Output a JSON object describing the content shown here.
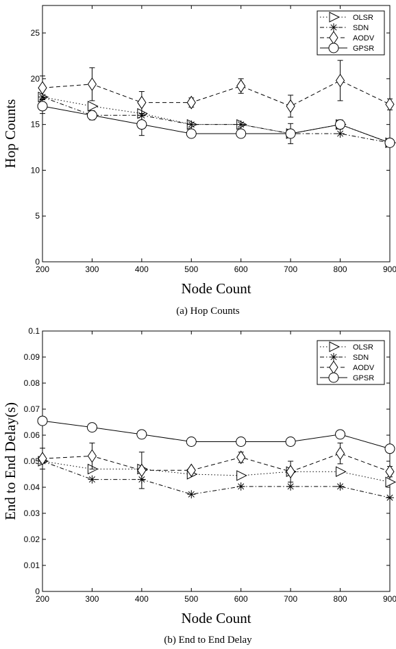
{
  "chart_data": [
    {
      "type": "line",
      "caption": "(a)  Hop Counts",
      "xlabel": "Node Count",
      "ylabel": "Hop Counts",
      "xlim": [
        200,
        900
      ],
      "ylim": [
        0,
        28
      ],
      "xticks": [
        200,
        300,
        400,
        500,
        600,
        700,
        800,
        900
      ],
      "yticks": [
        0,
        5,
        10,
        15,
        20,
        25
      ],
      "legend_position": "top-right",
      "x": [
        200,
        300,
        400,
        500,
        600,
        700,
        800,
        900
      ],
      "series": [
        {
          "name": "OLSR",
          "style": "dotted",
          "marker": "triangle-right",
          "values": [
            18,
            17,
            16.2,
            15,
            15,
            14,
            15,
            13
          ]
        },
        {
          "name": "SDN",
          "style": "dashdot",
          "marker": "star",
          "values": [
            18,
            16,
            16,
            15,
            15,
            14,
            14,
            13
          ]
        },
        {
          "name": "AODV",
          "style": "dashed",
          "marker": "diamond",
          "values": [
            19,
            19.4,
            17.4,
            17.4,
            19.2,
            17,
            19.8,
            17.2
          ],
          "err": [
            1.3,
            1.8,
            1.2,
            0.5,
            0.8,
            1.2,
            2.2,
            0.6
          ]
        },
        {
          "name": "GPSR",
          "style": "solid",
          "marker": "circle",
          "values": [
            17,
            16,
            15,
            14,
            14,
            14,
            15,
            13
          ],
          "err": [
            0.8,
            0.5,
            1.2,
            0,
            0,
            1.1,
            0.5,
            0.4
          ]
        }
      ]
    },
    {
      "type": "line",
      "caption": "(b)  End to End Delay",
      "xlabel": "Node Count",
      "ylabel": "End to End Delay(s)",
      "xlim": [
        200,
        900
      ],
      "ylim": [
        0,
        0.1
      ],
      "xticks": [
        200,
        300,
        400,
        500,
        600,
        700,
        800,
        900
      ],
      "yticks": [
        0,
        0.01,
        0.02,
        0.03,
        0.04,
        0.05,
        0.06,
        0.07,
        0.08,
        0.09,
        0.1
      ],
      "legend_position": "top-right",
      "x": [
        200,
        300,
        400,
        500,
        600,
        700,
        800,
        900
      ],
      "series": [
        {
          "name": "OLSR",
          "style": "dotted",
          "marker": "triangle-right",
          "values": [
            0.05,
            0.047,
            0.047,
            0.045,
            0.0445,
            0.046,
            0.046,
            0.042
          ]
        },
        {
          "name": "SDN",
          "style": "dashdot",
          "marker": "star",
          "values": [
            0.05,
            0.043,
            0.043,
            0.0373,
            0.0403,
            0.0403,
            0.0403,
            0.036
          ]
        },
        {
          "name": "AODV",
          "style": "dashed",
          "marker": "diamond",
          "values": [
            0.051,
            0.052,
            0.0465,
            0.0465,
            0.0515,
            0.046,
            0.053,
            0.046
          ],
          "err": [
            0.004,
            0.005,
            0.007,
            0.001,
            0.002,
            0.004,
            0.004,
            0.002
          ]
        },
        {
          "name": "GPSR",
          "style": "solid",
          "marker": "circle",
          "values": [
            0.0655,
            0.063,
            0.0603,
            0.0575,
            0.0575,
            0.0575,
            0.0603,
            0.0548
          ]
        }
      ]
    }
  ]
}
